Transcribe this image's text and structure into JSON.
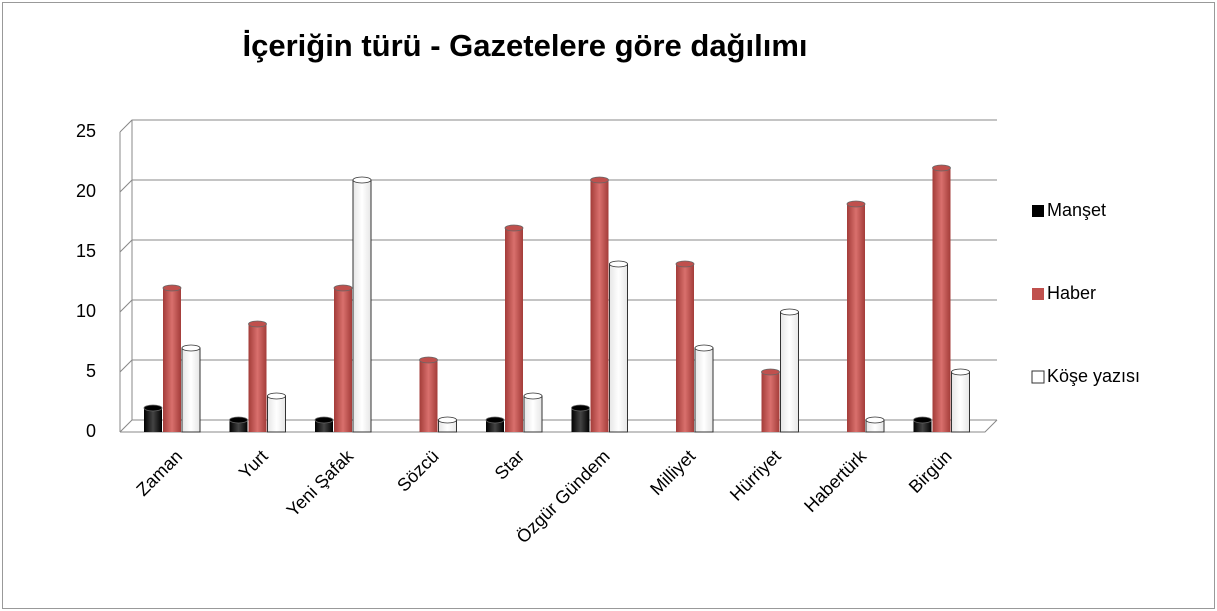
{
  "chart_data": {
    "type": "bar",
    "title": "İçeriğin türü - Gazetelere göre dağılımı",
    "categories": [
      "Zaman",
      "Yurt",
      "Yeni Şafak",
      "Sözcü",
      "Star",
      "Özgür Gündem",
      "Milliyet",
      "Hürriyet",
      "Habertürk",
      "Birgün"
    ],
    "series": [
      {
        "name": "Manşet",
        "color": "#000000",
        "values": [
          2,
          1,
          1,
          0,
          1,
          2,
          0,
          0,
          0,
          1
        ]
      },
      {
        "name": "Haber",
        "color": "#c0504d",
        "values": [
          12,
          9,
          12,
          6,
          17,
          21,
          14,
          5,
          19,
          22
        ]
      },
      {
        "name": "Köşe yazısı",
        "color": "#ffffff",
        "values": [
          7,
          3,
          21,
          1,
          3,
          14,
          7,
          10,
          1,
          5
        ]
      }
    ],
    "ylim": [
      0,
      25
    ],
    "yticks": [
      0,
      5,
      10,
      15,
      20,
      25
    ],
    "grid": true,
    "legend": "right"
  }
}
